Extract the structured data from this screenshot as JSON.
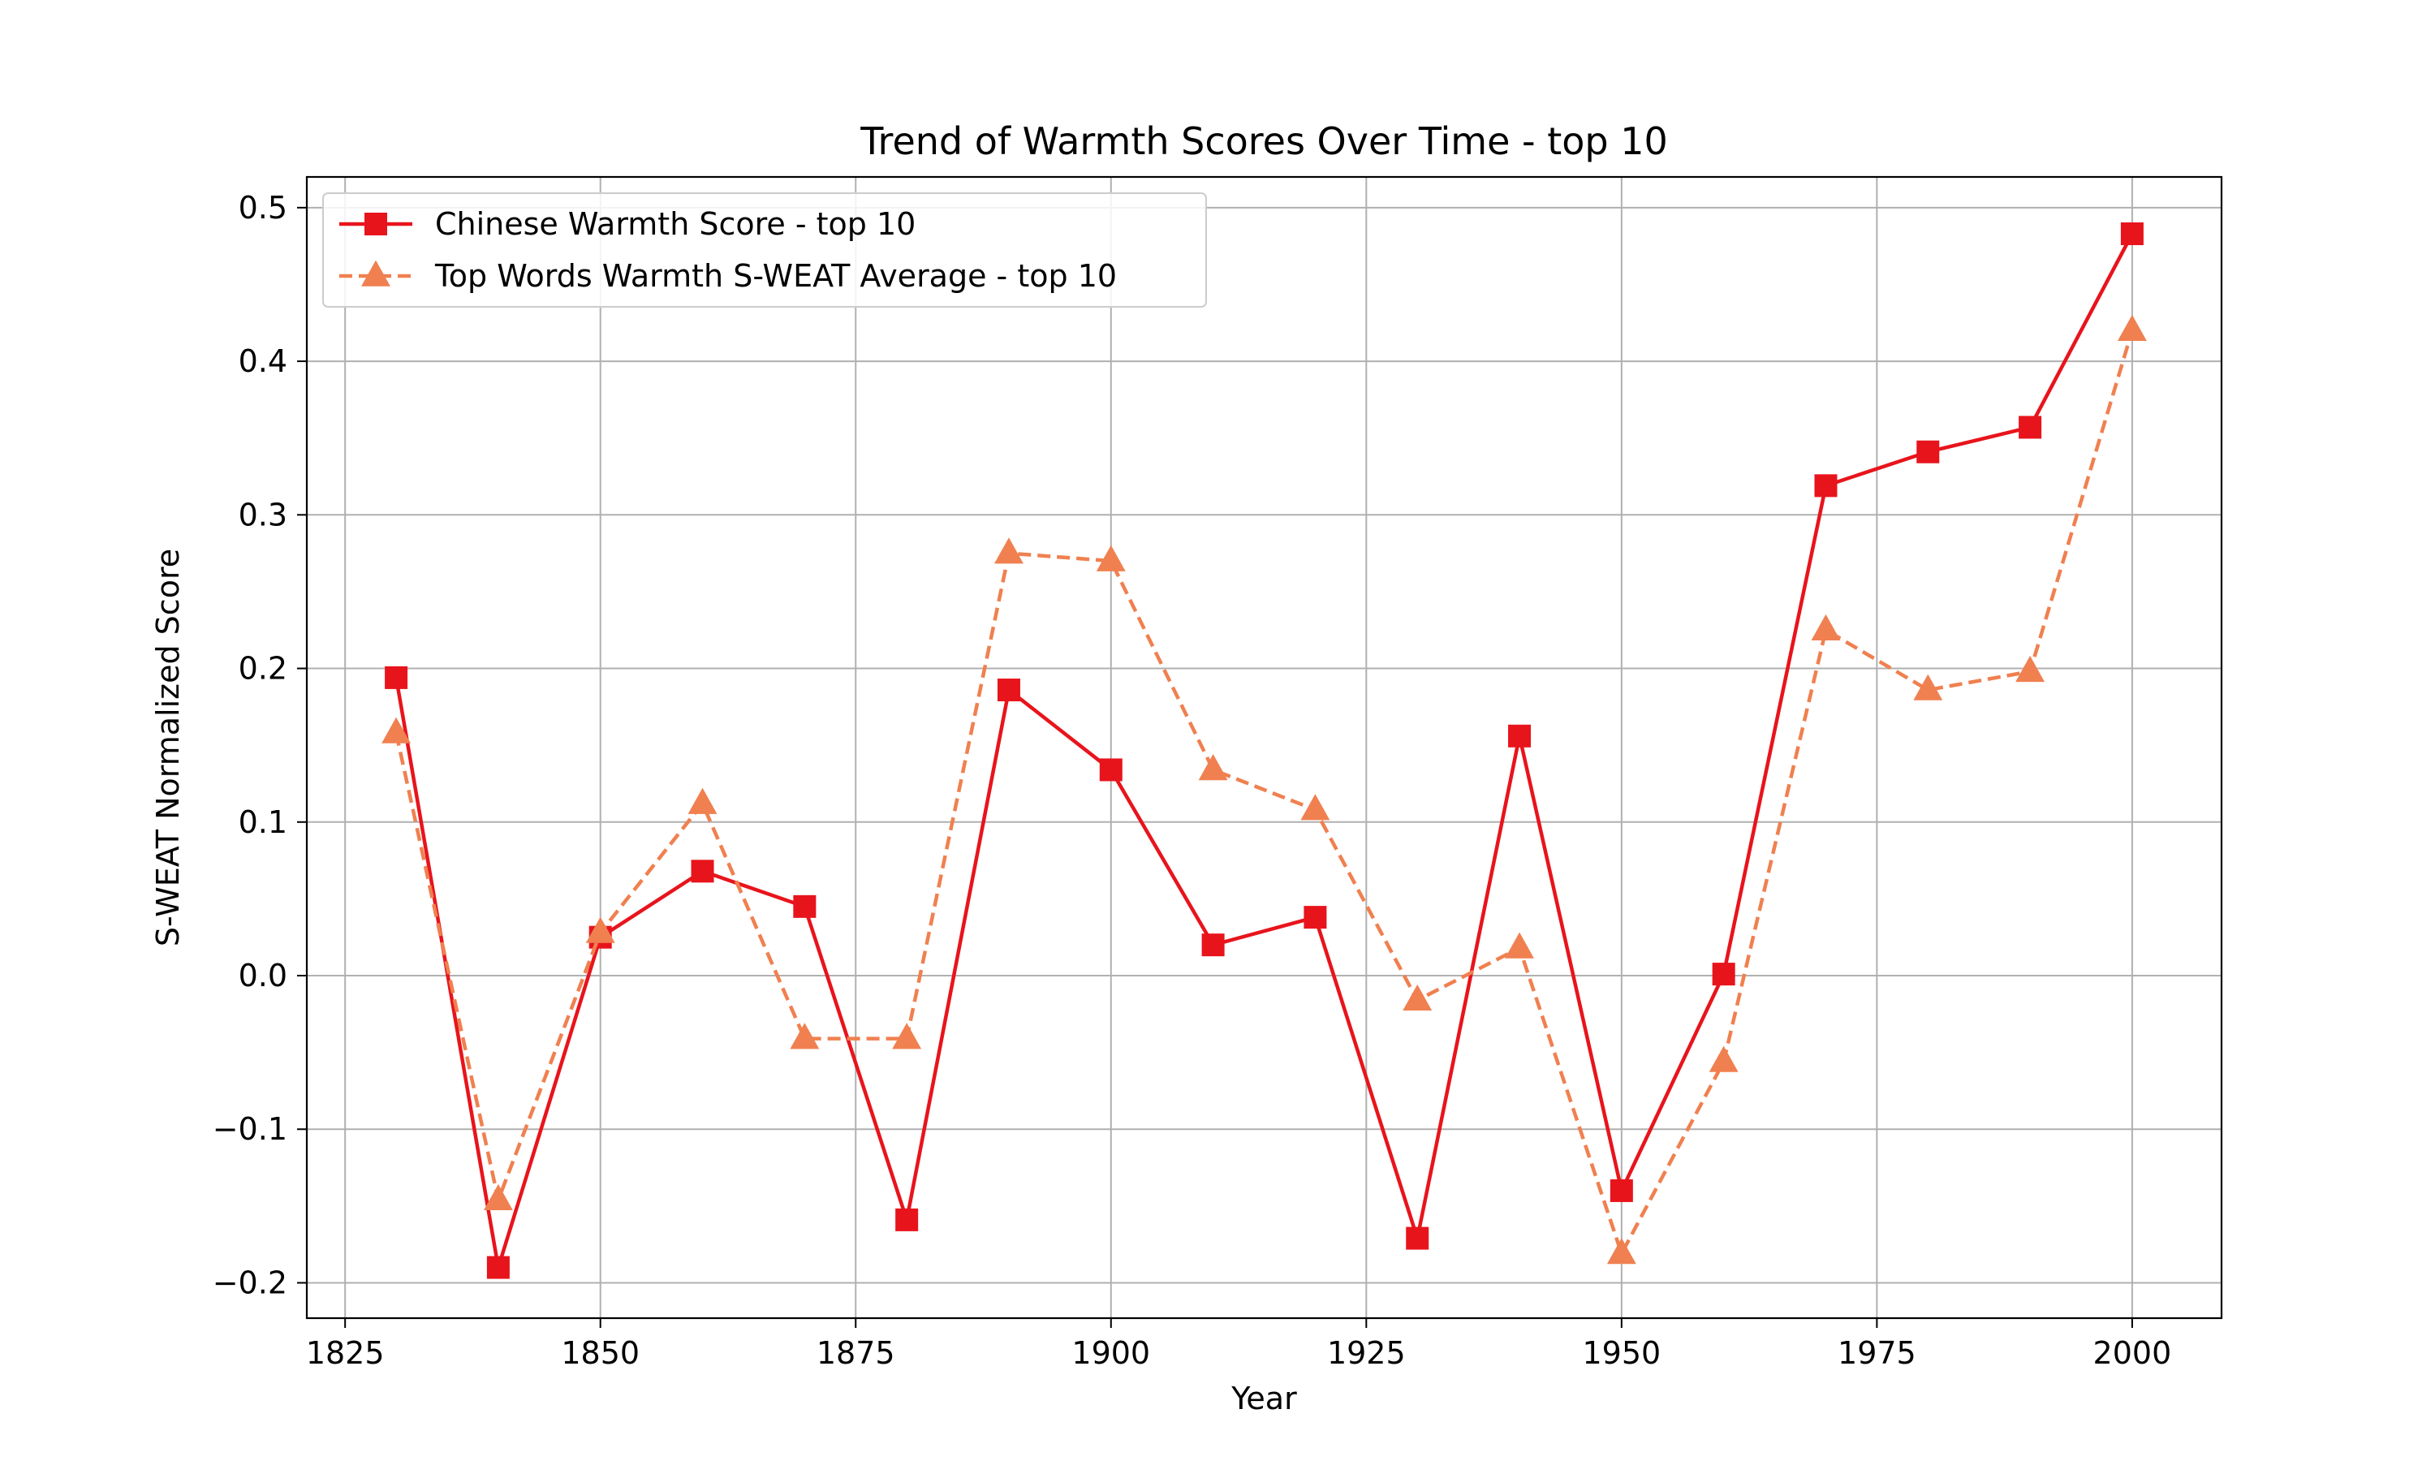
{
  "chart_data": {
    "type": "line",
    "title": "Trend of Warmth Scores Over Time - top 10",
    "xlabel": "Year",
    "ylabel": "S-WEAT Normalized Score",
    "xlim": [
      1821.25,
      2008.75
    ],
    "ylim": [
      -0.223,
      0.52
    ],
    "xticks": [
      1825,
      1850,
      1875,
      1900,
      1925,
      1950,
      1975,
      2000
    ],
    "xtick_labels": [
      "1825",
      "1850",
      "1875",
      "1900",
      "1925",
      "1950",
      "1975",
      "2000"
    ],
    "yticks": [
      -0.2,
      -0.1,
      0.0,
      0.1,
      0.2,
      0.3,
      0.4,
      0.5
    ],
    "ytick_labels": [
      "−0.2",
      "−0.1",
      "0.0",
      "0.1",
      "0.2",
      "0.3",
      "0.4",
      "0.5"
    ],
    "grid": true,
    "legend_position": "upper-left",
    "x": [
      1830,
      1840,
      1850,
      1860,
      1870,
      1880,
      1890,
      1900,
      1910,
      1920,
      1930,
      1940,
      1950,
      1960,
      1970,
      1980,
      1990,
      2000
    ],
    "series": [
      {
        "name": "Chinese Warmth Score - top 10",
        "color": "#e8141c",
        "linestyle": "solid",
        "marker": "square",
        "values": [
          0.194,
          -0.19,
          0.025,
          0.068,
          0.045,
          -0.159,
          0.186,
          0.134,
          0.02,
          0.038,
          -0.171,
          0.156,
          -0.14,
          0.001,
          0.319,
          0.341,
          0.357,
          0.483
        ]
      },
      {
        "name": "Top Words Warmth S-WEAT Average - top 10",
        "color": "#f08050",
        "linestyle": "dashed",
        "marker": "triangle",
        "values": [
          0.158,
          -0.146,
          0.028,
          0.112,
          -0.041,
          -0.041,
          0.275,
          0.27,
          0.134,
          0.108,
          -0.016,
          0.018,
          -0.181,
          -0.056,
          0.225,
          0.186,
          0.198,
          0.42
        ]
      }
    ]
  }
}
